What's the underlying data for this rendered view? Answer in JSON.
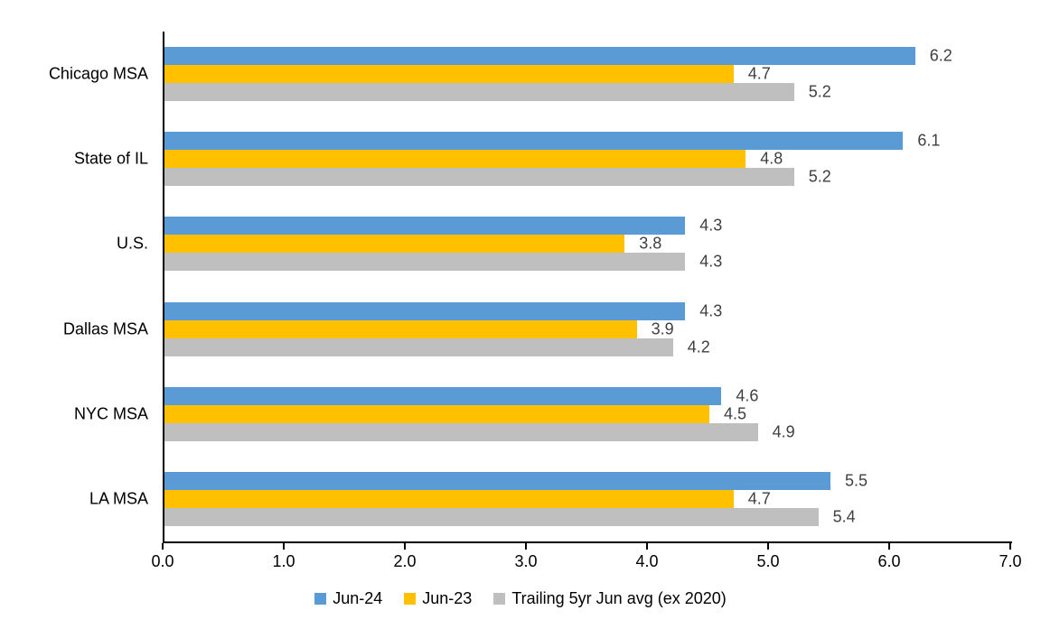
{
  "chart_data": {
    "type": "bar",
    "orientation": "horizontal",
    "title": "",
    "xlabel": "",
    "ylabel": "",
    "categories": [
      "Chicago MSA",
      "State of IL",
      "U.S.",
      "Dallas MSA",
      "NYC MSA",
      "LA MSA"
    ],
    "series": [
      {
        "name": "Jun-24",
        "color": "#5B9BD5",
        "values": [
          6.2,
          6.1,
          4.3,
          4.3,
          4.6,
          5.5
        ]
      },
      {
        "name": "Jun-23",
        "color": "#FFC000",
        "values": [
          4.7,
          4.8,
          3.8,
          3.9,
          4.5,
          4.7
        ]
      },
      {
        "name": "Trailing 5yr Jun avg (ex 2020)",
        "color": "#BFBFBF",
        "values": [
          5.2,
          5.2,
          4.3,
          4.2,
          4.9,
          5.4
        ]
      }
    ],
    "xlim": [
      0,
      7
    ],
    "x_ticks": [
      "0.0",
      "1.0",
      "2.0",
      "3.0",
      "4.0",
      "5.0",
      "6.0",
      "7.0"
    ],
    "grid": false,
    "data_labels": true,
    "data_label_color": "#404040",
    "axis_color": "#000000",
    "legend_position": "bottom"
  }
}
